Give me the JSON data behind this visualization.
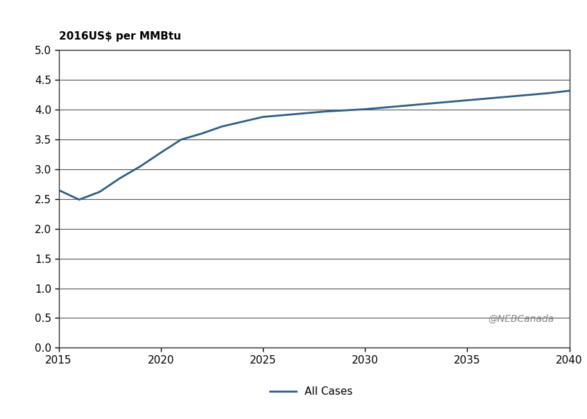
{
  "x": [
    2015,
    2016,
    2017,
    2018,
    2019,
    2020,
    2021,
    2022,
    2023,
    2024,
    2025,
    2026,
    2027,
    2028,
    2029,
    2030,
    2031,
    2032,
    2033,
    2034,
    2035,
    2036,
    2037,
    2038,
    2039,
    2040
  ],
  "y": [
    2.65,
    2.49,
    2.62,
    2.85,
    3.05,
    3.28,
    3.5,
    3.6,
    3.72,
    3.8,
    3.88,
    3.91,
    3.94,
    3.97,
    3.99,
    4.01,
    4.04,
    4.07,
    4.1,
    4.13,
    4.16,
    4.19,
    4.22,
    4.25,
    4.28,
    4.32
  ],
  "line_color": "#2e5f8a",
  "line_width": 2.0,
  "ylabel": "2016US$ per MMBtu",
  "ylim": [
    0.0,
    5.0
  ],
  "yticks": [
    0.0,
    0.5,
    1.0,
    1.5,
    2.0,
    2.5,
    3.0,
    3.5,
    4.0,
    4.5,
    5.0
  ],
  "xlim": [
    2015,
    2040
  ],
  "xticks": [
    2015,
    2020,
    2025,
    2030,
    2035,
    2040
  ],
  "legend_label": "All Cases",
  "watermark": "@NEBCanada",
  "background_color": "#ffffff",
  "grid_color": "#555555",
  "tick_label_fontsize": 11,
  "ylabel_fontsize": 11,
  "legend_fontsize": 11
}
